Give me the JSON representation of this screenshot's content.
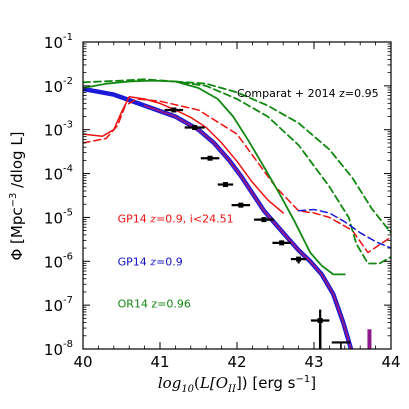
{
  "chart_data": {
    "type": "line",
    "title": "",
    "xlabel": {
      "prefix": "log",
      "sub": "10",
      "open": "(",
      "core": "L[O",
      "core_sub": "II",
      "close": "]) [erg s",
      "close_sup": "−1",
      "end": "]"
    },
    "ylabel": {
      "prefix": "Φ [Mpc",
      "sup": "−3",
      "suffix": " /dlog L]"
    },
    "xlim": [
      40,
      44
    ],
    "ylim_log10": [
      -8,
      -1
    ],
    "yscale": "log",
    "grid": false,
    "x_ticks": [
      "40",
      "41",
      "42",
      "43",
      "44"
    ],
    "y_ticks": [
      {
        "exp": -1,
        "base": "10",
        "sup": "-1"
      },
      {
        "exp": -2,
        "base": "10",
        "sup": "-2"
      },
      {
        "exp": -3,
        "base": "10",
        "sup": "-3"
      },
      {
        "exp": -4,
        "base": "10",
        "sup": "-4"
      },
      {
        "exp": -5,
        "base": "10",
        "sup": "-5"
      },
      {
        "exp": -6,
        "base": "10",
        "sup": "-6"
      },
      {
        "exp": -7,
        "base": "10",
        "sup": "-7"
      },
      {
        "exp": -8,
        "base": "10",
        "sup": "-8"
      }
    ],
    "annotations": [
      {
        "id": "comparat",
        "parts": [
          {
            "t": "Comparat + 2014 z=0.95",
            "math": false
          }
        ],
        "color": "#000000",
        "x": 42.0,
        "y": -2.25
      },
      {
        "id": "gp14-dust",
        "parts": [
          {
            "t": "GP14 ",
            "math": false
          },
          {
            "t": "z",
            "math": true
          },
          {
            "t": "=0.9, i<24.51",
            "math": false
          }
        ],
        "color": "#ee1111",
        "x": 40.45,
        "y": -5.12
      },
      {
        "id": "gp14",
        "parts": [
          {
            "t": "GP14 ",
            "math": false
          },
          {
            "t": "z",
            "math": true
          },
          {
            "t": "=0.9",
            "math": false
          }
        ],
        "color": "#1111cc",
        "x": 40.45,
        "y": -6.1
      },
      {
        "id": "or14",
        "parts": [
          {
            "t": "OR14 z=0.96",
            "math": false
          }
        ],
        "color": "#118811",
        "x": 40.45,
        "y": -7.05
      }
    ],
    "series": [
      {
        "id": "gp14-blue",
        "color": "#1a1ad8",
        "width": 4.5,
        "dash": "",
        "x": [
          40.0,
          40.4,
          40.8,
          41.2,
          41.5,
          41.7,
          41.9,
          42.05,
          42.2,
          42.35,
          42.5,
          42.65,
          42.8,
          42.95,
          43.1,
          43.25,
          43.38,
          43.48
        ],
        "log10_y": [
          -2.07,
          -2.2,
          -2.45,
          -2.7,
          -3.0,
          -3.3,
          -3.7,
          -4.05,
          -4.45,
          -4.85,
          -5.15,
          -5.45,
          -5.75,
          -6.0,
          -6.3,
          -6.75,
          -7.4,
          -8.0
        ]
      },
      {
        "id": "gp14-purple",
        "color": "#8c1a8c",
        "width": 2.0,
        "dash": "",
        "x": [
          40.8,
          41.2,
          41.5,
          41.7,
          41.9,
          42.05,
          42.2,
          42.35,
          42.5,
          42.65,
          42.8,
          42.95,
          43.1,
          43.25,
          43.38,
          43.48
        ],
        "log10_y": [
          -2.45,
          -2.7,
          -3.0,
          -3.3,
          -3.7,
          -4.05,
          -4.45,
          -4.85,
          -5.15,
          -5.45,
          -5.75,
          -6.0,
          -6.3,
          -6.75,
          -7.4,
          -8.0
        ]
      },
      {
        "id": "gp14-dust-solid",
        "color": "#ee1111",
        "width": 1.5,
        "dash": "",
        "x": [
          40.0,
          40.25,
          40.4,
          40.5,
          40.6,
          40.8,
          41.0,
          41.2,
          41.4,
          41.6,
          41.8,
          42.0,
          42.2,
          42.4,
          42.6
        ],
        "log10_y": [
          -3.1,
          -3.15,
          -3.0,
          -2.6,
          -2.25,
          -2.3,
          -2.4,
          -2.55,
          -2.72,
          -2.95,
          -3.3,
          -3.72,
          -4.2,
          -4.6,
          -4.9
        ]
      },
      {
        "id": "gp14-dust-dashed",
        "color": "#ee1111",
        "width": 1.5,
        "dash": "7,4",
        "x": [
          40.0,
          40.3,
          40.45,
          40.55,
          40.7,
          41.0,
          41.5,
          42.0,
          42.5,
          42.8,
          43.0,
          43.2,
          43.5,
          43.7,
          44.0
        ],
        "log10_y": [
          -3.3,
          -3.2,
          -2.9,
          -2.45,
          -2.3,
          -2.35,
          -2.55,
          -3.1,
          -4.3,
          -4.85,
          -4.9,
          -5.0,
          -5.3,
          -5.8,
          -5.45
        ]
      },
      {
        "id": "or14-solid",
        "color": "#118811",
        "width": 1.8,
        "dash": "",
        "x": [
          40.0,
          40.3,
          40.6,
          40.9,
          41.2,
          41.5,
          41.75,
          41.95,
          42.15,
          42.35,
          42.55,
          42.75,
          42.95,
          43.1,
          43.25,
          43.4
        ],
        "log10_y": [
          -2.05,
          -1.95,
          -1.9,
          -1.88,
          -1.9,
          -2.05,
          -2.3,
          -2.7,
          -3.25,
          -3.85,
          -4.45,
          -5.1,
          -5.8,
          -6.1,
          -6.3,
          -6.3
        ]
      },
      {
        "id": "comparat-dashed",
        "color": "#118811",
        "width": 1.8,
        "dash": "7,4",
        "x": [
          40.0,
          40.5,
          40.8,
          41.2,
          41.6,
          42.0,
          42.4,
          42.8,
          43.2,
          43.45,
          43.55,
          43.7,
          43.85,
          44.0
        ],
        "log10_y": [
          -1.92,
          -1.88,
          -1.85,
          -1.9,
          -2.0,
          -2.3,
          -2.7,
          -3.35,
          -4.3,
          -5.0,
          -5.6,
          -6.05,
          -6.05,
          -5.9
        ]
      },
      {
        "id": "comparat-dashed-upper",
        "color": "#118811",
        "width": 1.8,
        "dash": "7,4",
        "x": [
          41.2,
          41.6,
          42.0,
          42.4,
          42.8,
          43.2,
          43.5,
          43.75,
          44.0
        ],
        "log10_y": [
          -1.9,
          -1.95,
          -2.15,
          -2.45,
          -2.85,
          -3.45,
          -4.1,
          -4.8,
          -5.35
        ]
      },
      {
        "id": "gp14-dust-dashed-blue",
        "color": "#1a1ad8",
        "width": 1.5,
        "dash": "7,4",
        "x": [
          42.8,
          43.0,
          43.2,
          43.4,
          43.6,
          43.8,
          44.0
        ],
        "log10_y": [
          -4.85,
          -4.82,
          -4.9,
          -5.1,
          -5.35,
          -5.55,
          -5.7
        ]
      }
    ],
    "extra_lines": [
      {
        "id": "purple-tail",
        "color": "#8c1a8c",
        "width": 4.0,
        "x": [
          43.72,
          43.72
        ],
        "log10_y": [
          -7.55,
          -8.0
        ]
      }
    ],
    "data_points": [
      {
        "x": 41.18,
        "log10_y": -2.55,
        "xerr": 0.12,
        "yerr_lo": 0.0,
        "yerr_hi": 0.0
      },
      {
        "x": 41.45,
        "log10_y": -2.95,
        "xerr": 0.13,
        "yerr_lo": 0.0,
        "yerr_hi": 0.0
      },
      {
        "x": 41.65,
        "log10_y": -3.65,
        "xerr": 0.12,
        "yerr_lo": 0.0,
        "yerr_hi": 0.0
      },
      {
        "x": 41.85,
        "log10_y": -4.25,
        "xerr": 0.1,
        "yerr_lo": 0.0,
        "yerr_hi": 0.0
      },
      {
        "x": 42.05,
        "log10_y": -4.72,
        "xerr": 0.12,
        "yerr_lo": 0.0,
        "yerr_hi": 0.0
      },
      {
        "x": 42.35,
        "log10_y": -5.05,
        "xerr": 0.13,
        "yerr_lo": 0.0,
        "yerr_hi": 0.0
      },
      {
        "x": 42.58,
        "log10_y": -5.58,
        "xerr": 0.12,
        "yerr_lo": 0.0,
        "yerr_hi": 0.0
      },
      {
        "x": 42.8,
        "log10_y": -5.95,
        "xerr": 0.1,
        "yerr_lo": 0.1,
        "yerr_hi": 0.0
      },
      {
        "x": 43.08,
        "log10_y": -7.35,
        "xerr": 0.12,
        "yerr_lo": 0.7,
        "yerr_hi": 0.25
      }
    ],
    "upper_limit": {
      "x": 43.35,
      "log10_y": -7.85,
      "xerr": 0.12,
      "arrow_to_log10_y": -8.7
    }
  }
}
